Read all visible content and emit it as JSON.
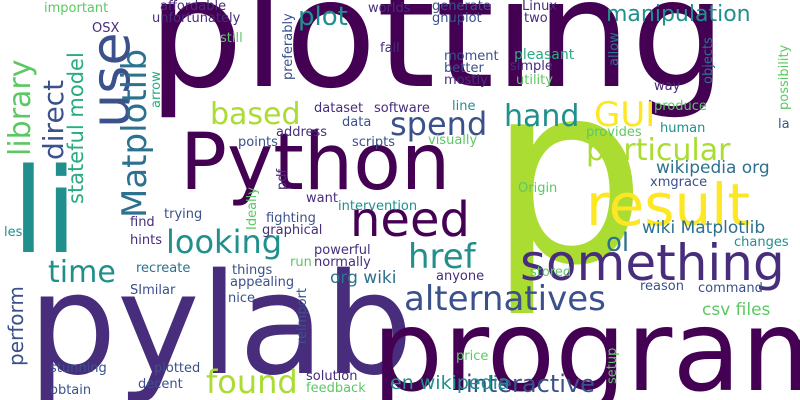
{
  "cloud": {
    "words": {
      "p": "p",
      "plotting": "plotting",
      "pylab": "pylab",
      "program": "program",
      "li": "li",
      "python": "Python",
      "result": "result",
      "something": "something",
      "need": "need",
      "alternatives": "alternatives",
      "use": "use",
      "matplotlib": "Matplotlib",
      "looking": "looking",
      "href": "href",
      "found": "found",
      "library": "library",
      "direct": "direct",
      "based": "based",
      "spend": "spend",
      "hand": "hand",
      "gui": "GUI",
      "particular": "particular",
      "time": "time",
      "interactive": "interactive",
      "en_wikipedia": "en wikipedia",
      "manipulation": "manipulation",
      "plot": "plot",
      "stateful_model": "stateful model",
      "ol": "ol",
      "wiki_matplotlib": "wiki Matplotlib",
      "wikipedia_org": "wikipedia org",
      "org_wiki": "org wiki",
      "csv_files": "csv files",
      "perform": "perform",
      "affordable": "affordable",
      "unfortunately": "unfortunately",
      "important": "important",
      "osx": "OSX",
      "preferably": "preferably",
      "worlds": "worlds",
      "generate": "generate",
      "gnuplot": "gnuplot",
      "linux": "Linux",
      "two": "two",
      "still": "still",
      "fail": "fail",
      "moment": "moment",
      "pleasant": "pleasant",
      "better": "better",
      "simple": "simple",
      "mostly": "mostly",
      "utility": "utility",
      "allow": "allow",
      "objects": "objects",
      "possibility": "possibility",
      "way": "way",
      "arrow": "arrow",
      "dataset": "dataset",
      "software": "software",
      "line": "line",
      "data": "data",
      "produce": "produce",
      "la": "la",
      "address": "address",
      "human": "human",
      "provides": "provides",
      "points": "points",
      "scripts": "scripts",
      "visually": "visually",
      "pdf": "pdf",
      "ideally": "Ideally",
      "origin": "Origin",
      "xmgrace": "xmgrace",
      "trying": "trying",
      "want": "want",
      "intervention": "intervention",
      "find": "find",
      "fighting": "fighting",
      "less": "less",
      "graphical": "graphical",
      "hints": "hints",
      "powerful": "powerful",
      "recreate": "recreate",
      "things": "things",
      "run": "run",
      "normally": "normally",
      "changes": "changes",
      "stored": "stored",
      "anyone": "anyone",
      "similar": "SImilar",
      "appealing": "appealing",
      "reason": "reason",
      "command": "command",
      "nice": "nice",
      "reimport": "reimport",
      "setup": "setup",
      "price": "price",
      "stunning": "stunning",
      "plotted": "plotted",
      "solution": "solution",
      "obtain": "obtain",
      "decent": "decent",
      "feedback": "feedback"
    },
    "palette": {
      "dark_purple": "#440154",
      "purple": "#472d7b",
      "indigo": "#3b518b",
      "blue": "#2c718e",
      "teal": "#21908d",
      "green": "#27ad81",
      "light_green": "#5cc863",
      "lime": "#aadc32",
      "yellow": "#fde725"
    }
  }
}
